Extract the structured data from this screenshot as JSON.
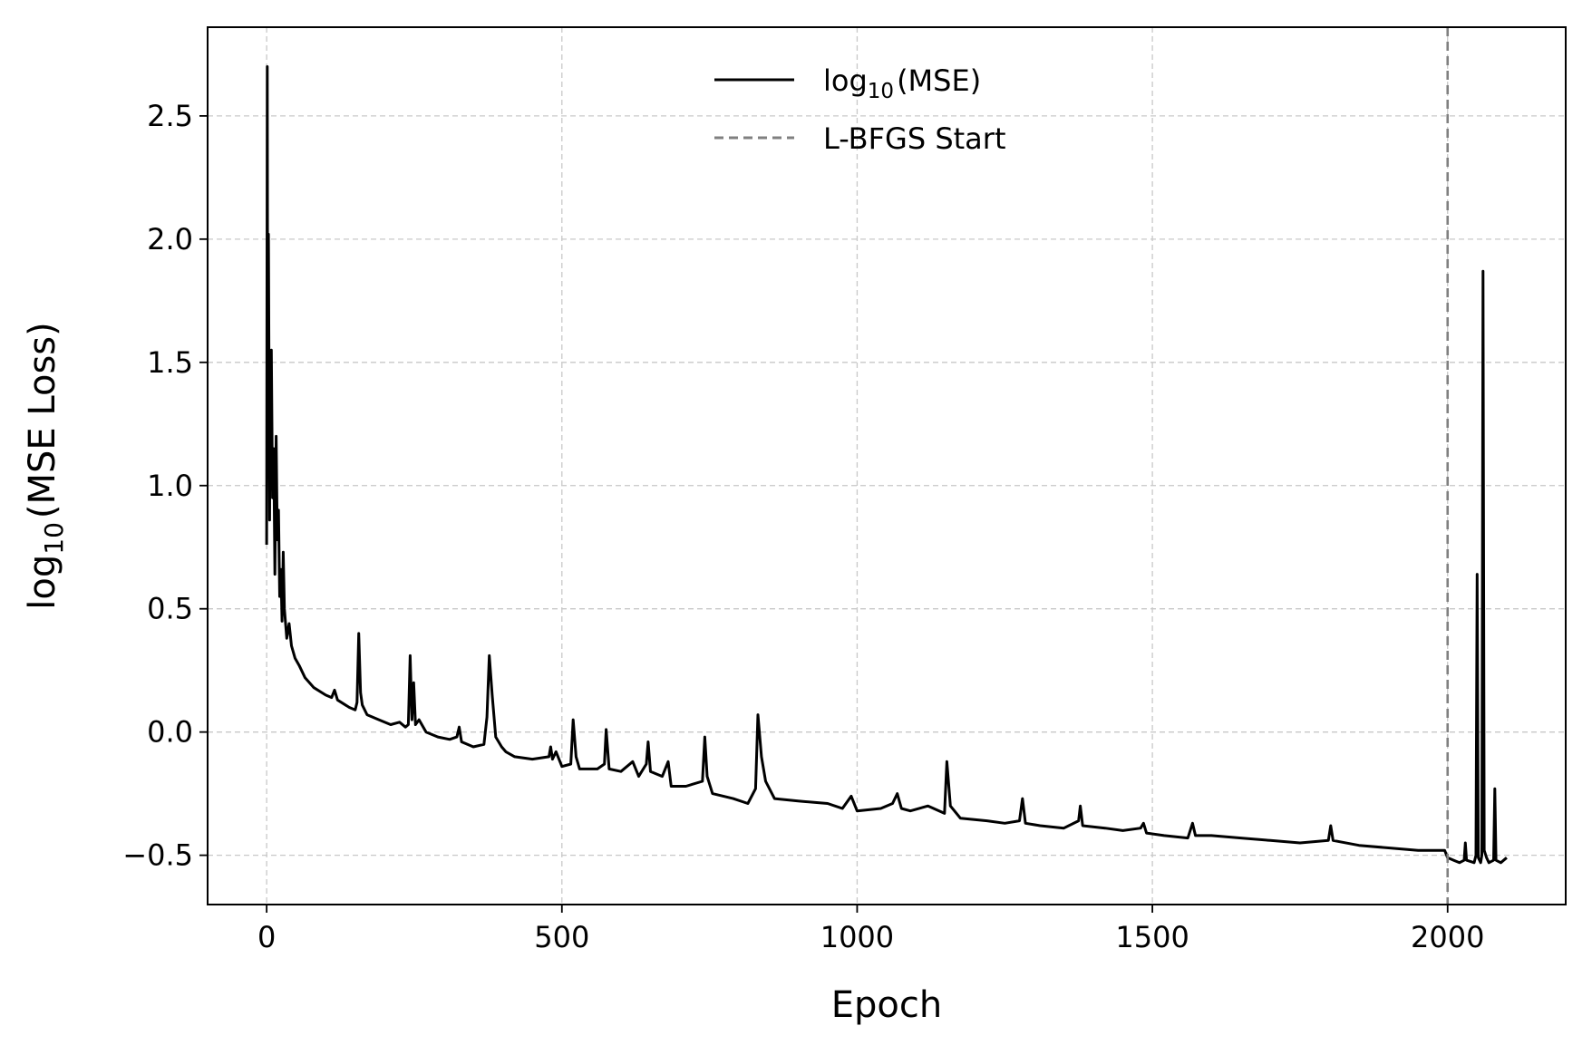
{
  "chart_data": {
    "type": "line",
    "xlabel": "Epoch",
    "ylabel": "log10(MSE Loss)",
    "xlim": [
      -100,
      2200
    ],
    "ylim": [
      -0.7,
      2.86
    ],
    "x_ticks": [
      0,
      500,
      1000,
      1500,
      2000
    ],
    "x_tick_labels": [
      "0",
      "500",
      "1000",
      "1500",
      "2000"
    ],
    "y_ticks": [
      -0.5,
      0.0,
      0.5,
      1.0,
      1.5,
      2.0,
      2.5
    ],
    "y_tick_labels": [
      "−0.5",
      "0.0",
      "0.5",
      "1.0",
      "1.5",
      "2.0",
      "2.5"
    ],
    "grid": true,
    "legend_position": "top-center",
    "series": [
      {
        "name": "log10(MSE)",
        "color": "#000000",
        "line_style": "solid",
        "points": [
          [
            0,
            0.76
          ],
          [
            1,
            2.7
          ],
          [
            2,
            1.1
          ],
          [
            3,
            2.02
          ],
          [
            5,
            0.86
          ],
          [
            6,
            1.45
          ],
          [
            8,
            1.55
          ],
          [
            10,
            0.95
          ],
          [
            12,
            1.15
          ],
          [
            14,
            0.64
          ],
          [
            16,
            1.2
          ],
          [
            18,
            0.78
          ],
          [
            20,
            0.9
          ],
          [
            22,
            0.55
          ],
          [
            24,
            0.66
          ],
          [
            26,
            0.45
          ],
          [
            28,
            0.73
          ],
          [
            30,
            0.5
          ],
          [
            34,
            0.38
          ],
          [
            38,
            0.44
          ],
          [
            42,
            0.35
          ],
          [
            48,
            0.3
          ],
          [
            55,
            0.27
          ],
          [
            65,
            0.22
          ],
          [
            80,
            0.18
          ],
          [
            100,
            0.15
          ],
          [
            110,
            0.14
          ],
          [
            115,
            0.17
          ],
          [
            120,
            0.13
          ],
          [
            140,
            0.1
          ],
          [
            150,
            0.09
          ],
          [
            153,
            0.12
          ],
          [
            156,
            0.4
          ],
          [
            159,
            0.16
          ],
          [
            162,
            0.11
          ],
          [
            170,
            0.07
          ],
          [
            190,
            0.05
          ],
          [
            210,
            0.03
          ],
          [
            225,
            0.04
          ],
          [
            235,
            0.02
          ],
          [
            240,
            0.03
          ],
          [
            243,
            0.31
          ],
          [
            246,
            0.05
          ],
          [
            249,
            0.2
          ],
          [
            252,
            0.03
          ],
          [
            258,
            0.05
          ],
          [
            270,
            0.0
          ],
          [
            290,
            -0.02
          ],
          [
            310,
            -0.03
          ],
          [
            322,
            -0.02
          ],
          [
            326,
            0.02
          ],
          [
            330,
            -0.04
          ],
          [
            350,
            -0.06
          ],
          [
            368,
            -0.05
          ],
          [
            373,
            0.06
          ],
          [
            377,
            0.31
          ],
          [
            382,
            0.15
          ],
          [
            388,
            -0.02
          ],
          [
            398,
            -0.06
          ],
          [
            405,
            -0.08
          ],
          [
            420,
            -0.1
          ],
          [
            450,
            -0.11
          ],
          [
            478,
            -0.1
          ],
          [
            481,
            -0.06
          ],
          [
            484,
            -0.11
          ],
          [
            490,
            -0.08
          ],
          [
            500,
            -0.14
          ],
          [
            515,
            -0.13
          ],
          [
            519,
            0.05
          ],
          [
            524,
            -0.1
          ],
          [
            530,
            -0.15
          ],
          [
            560,
            -0.15
          ],
          [
            572,
            -0.13
          ],
          [
            575,
            0.01
          ],
          [
            580,
            -0.15
          ],
          [
            600,
            -0.16
          ],
          [
            620,
            -0.12
          ],
          [
            630,
            -0.18
          ],
          [
            643,
            -0.13
          ],
          [
            646,
            -0.04
          ],
          [
            650,
            -0.16
          ],
          [
            670,
            -0.18
          ],
          [
            680,
            -0.12
          ],
          [
            685,
            -0.22
          ],
          [
            710,
            -0.22
          ],
          [
            738,
            -0.2
          ],
          [
            742,
            -0.02
          ],
          [
            746,
            -0.18
          ],
          [
            755,
            -0.25
          ],
          [
            790,
            -0.27
          ],
          [
            815,
            -0.29
          ],
          [
            828,
            -0.23
          ],
          [
            832,
            0.07
          ],
          [
            838,
            -0.1
          ],
          [
            845,
            -0.2
          ],
          [
            860,
            -0.27
          ],
          [
            900,
            -0.28
          ],
          [
            950,
            -0.29
          ],
          [
            975,
            -0.31
          ],
          [
            990,
            -0.26
          ],
          [
            1000,
            -0.32
          ],
          [
            1040,
            -0.31
          ],
          [
            1060,
            -0.29
          ],
          [
            1068,
            -0.25
          ],
          [
            1075,
            -0.31
          ],
          [
            1090,
            -0.32
          ],
          [
            1120,
            -0.3
          ],
          [
            1148,
            -0.33
          ],
          [
            1152,
            -0.12
          ],
          [
            1158,
            -0.3
          ],
          [
            1175,
            -0.35
          ],
          [
            1220,
            -0.36
          ],
          [
            1250,
            -0.37
          ],
          [
            1275,
            -0.36
          ],
          [
            1280,
            -0.27
          ],
          [
            1285,
            -0.37
          ],
          [
            1310,
            -0.38
          ],
          [
            1350,
            -0.39
          ],
          [
            1375,
            -0.36
          ],
          [
            1378,
            -0.3
          ],
          [
            1382,
            -0.38
          ],
          [
            1420,
            -0.39
          ],
          [
            1450,
            -0.4
          ],
          [
            1480,
            -0.39
          ],
          [
            1485,
            -0.37
          ],
          [
            1490,
            -0.41
          ],
          [
            1520,
            -0.42
          ],
          [
            1560,
            -0.43
          ],
          [
            1568,
            -0.37
          ],
          [
            1573,
            -0.42
          ],
          [
            1600,
            -0.42
          ],
          [
            1650,
            -0.43
          ],
          [
            1700,
            -0.44
          ],
          [
            1750,
            -0.45
          ],
          [
            1798,
            -0.44
          ],
          [
            1802,
            -0.38
          ],
          [
            1806,
            -0.44
          ],
          [
            1850,
            -0.46
          ],
          [
            1900,
            -0.47
          ],
          [
            1950,
            -0.48
          ],
          [
            1995,
            -0.48
          ],
          [
            2000,
            -0.51
          ],
          [
            2010,
            -0.52
          ],
          [
            2020,
            -0.53
          ],
          [
            2028,
            -0.52
          ],
          [
            2030,
            -0.45
          ],
          [
            2032,
            -0.52
          ],
          [
            2045,
            -0.53
          ],
          [
            2048,
            -0.5
          ],
          [
            2050,
            0.64
          ],
          [
            2052,
            -0.51
          ],
          [
            2056,
            -0.53
          ],
          [
            2058,
            -0.5
          ],
          [
            2060,
            1.87
          ],
          [
            2062,
            -0.48
          ],
          [
            2066,
            -0.51
          ],
          [
            2070,
            -0.53
          ],
          [
            2078,
            -0.52
          ],
          [
            2080,
            -0.23
          ],
          [
            2082,
            -0.52
          ],
          [
            2090,
            -0.53
          ],
          [
            2100,
            -0.51
          ]
        ]
      },
      {
        "name": "L-BFGS Start",
        "color": "#808080",
        "line_style": "dashed",
        "vline_x": 2000
      }
    ]
  },
  "legend": {
    "entries": [
      {
        "label_main": "log",
        "label_sub": "10",
        "label_rest": "(MSE)"
      },
      {
        "label": "L-BFGS Start"
      }
    ]
  },
  "ylabel_parts": {
    "main": "log",
    "sub": "10",
    "rest": "(MSE Loss)"
  }
}
